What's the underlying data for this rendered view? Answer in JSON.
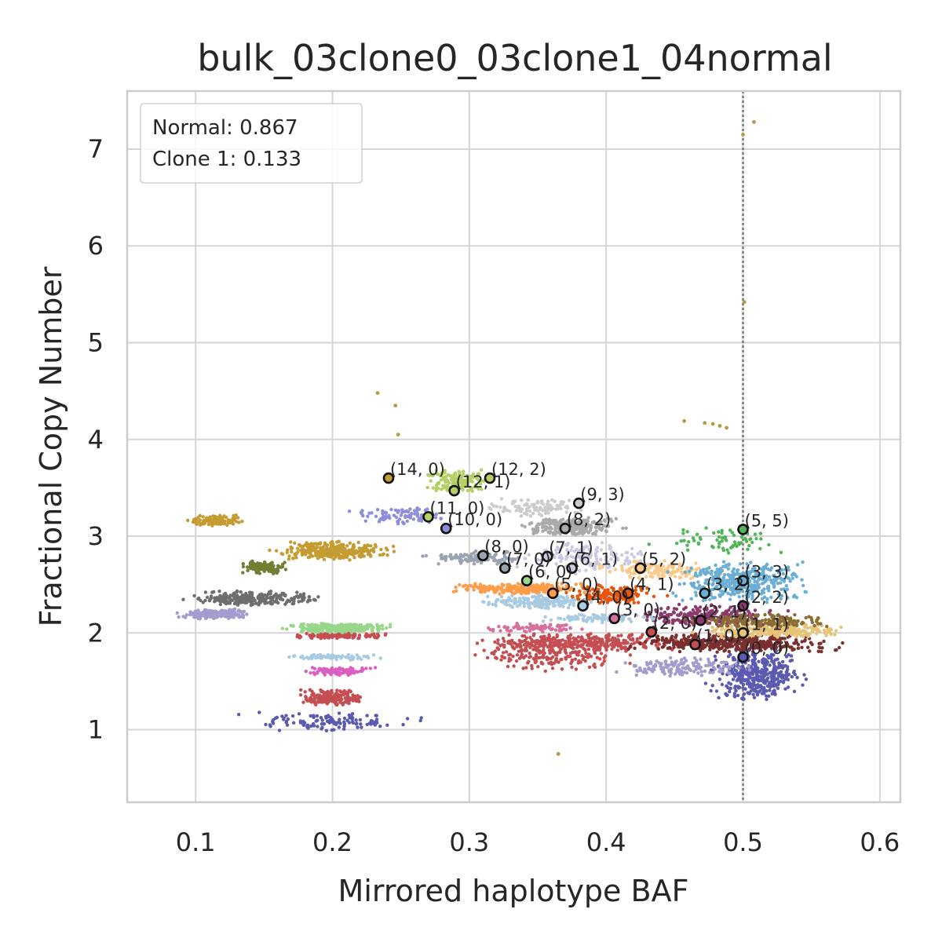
{
  "chart_data": {
    "type": "scatter",
    "title": "bulk_03clone0_03clone1_04normal",
    "xlabel": "Mirrored haplotype BAF",
    "ylabel": "Fractional Copy Number",
    "xlim": [
      0.05,
      0.615
    ],
    "ylim": [
      0.25,
      7.6
    ],
    "x_ticks": [
      "0.1",
      "0.2",
      "0.3",
      "0.4",
      "0.5",
      "0.6"
    ],
    "y_ticks": [
      "1",
      "2",
      "3",
      "4",
      "5",
      "6",
      "7"
    ],
    "grid": true,
    "legend_position": "top-left",
    "legend": [
      "Normal: 0.867",
      "Clone 1: 0.133"
    ],
    "reference_line_x": 0.5,
    "clusters": [
      {
        "color": "#5a5ab0",
        "x": [
          0.47,
          0.55
        ],
        "y": [
          1.3,
          1.85
        ],
        "n": 420
      },
      {
        "color": "#5a5ab0",
        "x": [
          0.12,
          0.28
        ],
        "y": [
          0.98,
          1.18
        ],
        "n": 120
      },
      {
        "color": "#c44e52",
        "x": [
          0.17,
          0.23
        ],
        "y": [
          1.25,
          1.42
        ],
        "n": 200
      },
      {
        "color": "#da5fc0",
        "x": [
          0.17,
          0.24
        ],
        "y": [
          1.56,
          1.65
        ],
        "n": 110
      },
      {
        "color": "#a9cbe2",
        "x": [
          0.15,
          0.25
        ],
        "y": [
          1.72,
          1.78
        ],
        "n": 80
      },
      {
        "color": "#c44e52",
        "x": [
          0.16,
          0.25
        ],
        "y": [
          1.94,
          2.0
        ],
        "n": 110
      },
      {
        "color": "#98d68a",
        "x": [
          0.16,
          0.25
        ],
        "y": [
          2.0,
          2.1
        ],
        "n": 260
      },
      {
        "color": "#a39ccc",
        "x": [
          0.08,
          0.15
        ],
        "y": [
          2.14,
          2.25
        ],
        "n": 170
      },
      {
        "color": "#6e6e6e",
        "x": [
          0.08,
          0.2
        ],
        "y": [
          2.28,
          2.45
        ],
        "n": 250
      },
      {
        "color": "#707f33",
        "x": [
          0.13,
          0.17
        ],
        "y": [
          2.6,
          2.75
        ],
        "n": 130
      },
      {
        "color": "#c49c32",
        "x": [
          0.15,
          0.25
        ],
        "y": [
          2.75,
          2.95
        ],
        "n": 330
      },
      {
        "color": "#c49c32",
        "x": [
          0.09,
          0.14
        ],
        "y": [
          3.1,
          3.22
        ],
        "n": 130
      },
      {
        "color": "#8e8edc",
        "x": [
          0.2,
          0.3
        ],
        "y": [
          3.12,
          3.3
        ],
        "n": 90
      },
      {
        "color": "#b4d065",
        "x": [
          0.26,
          0.32
        ],
        "y": [
          3.45,
          3.7
        ],
        "n": 160
      },
      {
        "color": "#aaaaaa",
        "x": [
          0.33,
          0.42
        ],
        "y": [
          3.0,
          3.2
        ],
        "n": 260
      },
      {
        "color": "#cccccc",
        "x": [
          0.3,
          0.4
        ],
        "y": [
          3.2,
          3.4
        ],
        "n": 100
      },
      {
        "color": "#9aa3b0",
        "x": [
          0.26,
          0.35
        ],
        "y": [
          2.7,
          2.85
        ],
        "n": 120
      },
      {
        "color": "#cbc9e0",
        "x": [
          0.32,
          0.45
        ],
        "y": [
          2.6,
          2.95
        ],
        "n": 150
      },
      {
        "color": "#fd9d4a",
        "x": [
          0.27,
          0.4
        ],
        "y": [
          2.4,
          2.52
        ],
        "n": 240
      },
      {
        "color": "#e6550d",
        "x": [
          0.36,
          0.45
        ],
        "y": [
          2.3,
          2.5
        ],
        "n": 140
      },
      {
        "color": "#a9cbe2",
        "x": [
          0.3,
          0.4
        ],
        "y": [
          2.25,
          2.4
        ],
        "n": 180
      },
      {
        "color": "#fbc98a",
        "x": [
          0.38,
          0.5
        ],
        "y": [
          2.55,
          2.75
        ],
        "n": 140
      },
      {
        "color": "#6aaed6",
        "x": [
          0.44,
          0.56
        ],
        "y": [
          2.3,
          2.75
        ],
        "n": 380
      },
      {
        "color": "#52b55a",
        "x": [
          0.42,
          0.55
        ],
        "y": [
          2.8,
          3.1
        ],
        "n": 70
      },
      {
        "color": "#c44e52",
        "x": [
          0.29,
          0.43
        ],
        "y": [
          1.6,
          1.95
        ],
        "n": 200
      },
      {
        "color": "#c44e52",
        "x": [
          0.3,
          0.47
        ],
        "y": [
          1.8,
          2.0
        ],
        "n": 320
      },
      {
        "color": "#7a2f2f",
        "x": [
          0.4,
          0.58
        ],
        "y": [
          1.8,
          2.0
        ],
        "n": 420
      },
      {
        "color": "#e6c47a",
        "x": [
          0.46,
          0.58
        ],
        "y": [
          1.95,
          2.1
        ],
        "n": 260
      },
      {
        "color": "#8c3a6e",
        "x": [
          0.4,
          0.55
        ],
        "y": [
          2.05,
          2.3
        ],
        "n": 220
      },
      {
        "color": "#d6719e",
        "x": [
          0.3,
          0.4
        ],
        "y": [
          2.0,
          2.1
        ],
        "n": 80
      },
      {
        "color": "#8c6d31",
        "x": [
          0.45,
          0.58
        ],
        "y": [
          2.05,
          2.2
        ],
        "n": 160
      },
      {
        "color": "#a9cbe2",
        "x": [
          0.34,
          0.45
        ],
        "y": [
          2.1,
          2.2
        ],
        "n": 90
      },
      {
        "color": "#a39ccc",
        "x": [
          0.4,
          0.52
        ],
        "y": [
          1.55,
          1.75
        ],
        "n": 150
      }
    ],
    "outliers": {
      "color": "#b39a48",
      "points": [
        [
          0.5,
          7.15
        ],
        [
          0.508,
          7.28
        ],
        [
          0.501,
          5.42
        ],
        [
          0.233,
          4.48
        ],
        [
          0.246,
          4.35
        ],
        [
          0.248,
          4.05
        ],
        [
          0.457,
          4.19
        ],
        [
          0.472,
          4.17
        ],
        [
          0.478,
          4.16
        ],
        [
          0.483,
          4.14
        ],
        [
          0.488,
          4.12
        ],
        [
          0.365,
          0.75
        ]
      ]
    },
    "states": [
      {
        "label": "(14, 0)",
        "x": 0.241,
        "y": 3.6,
        "color": "#c49c32"
      },
      {
        "label": "(12, 2)",
        "x": 0.315,
        "y": 3.6,
        "color": "#b4d065"
      },
      {
        "label": "(12, 1)",
        "x": 0.289,
        "y": 3.47,
        "color": "#b4d065"
      },
      {
        "label": "(9, 3)",
        "x": 0.38,
        "y": 3.34,
        "color": "#cccccc"
      },
      {
        "label": "(11, 0)",
        "x": 0.27,
        "y": 3.2,
        "color": "#b4d065"
      },
      {
        "label": "(10, 0)",
        "x": 0.283,
        "y": 3.08,
        "color": "#8e8edc"
      },
      {
        "label": "(8, 2)",
        "x": 0.37,
        "y": 3.08,
        "color": "#aaaaaa"
      },
      {
        "label": "(5, 5)",
        "x": 0.5,
        "y": 3.07,
        "color": "#52b55a"
      },
      {
        "label": "(8, 0)",
        "x": 0.31,
        "y": 2.8,
        "color": "#9aa3b0"
      },
      {
        "label": "(7, 1)",
        "x": 0.357,
        "y": 2.79,
        "color": "#cbc9e0"
      },
      {
        "label": "(7, 0)",
        "x": 0.326,
        "y": 2.67,
        "color": "#9aa3b0"
      },
      {
        "label": "(6, 1)",
        "x": 0.375,
        "y": 2.67,
        "color": "#cbc9e0"
      },
      {
        "label": "(5, 2)",
        "x": 0.425,
        "y": 2.67,
        "color": "#fbc98a"
      },
      {
        "label": "(6, 0)",
        "x": 0.342,
        "y": 2.54,
        "color": "#98d68a"
      },
      {
        "label": "(3, 3)",
        "x": 0.5,
        "y": 2.54,
        "color": "#6aaed6"
      },
      {
        "label": "(5, 0)",
        "x": 0.361,
        "y": 2.41,
        "color": "#fd9d4a"
      },
      {
        "label": "(4, 1)",
        "x": 0.416,
        "y": 2.41,
        "color": "#e6550d"
      },
      {
        "label": "(3, 2)",
        "x": 0.472,
        "y": 2.41,
        "color": "#6aaed6"
      },
      {
        "label": "(4, 0)",
        "x": 0.383,
        "y": 2.28,
        "color": "#a9cbe2"
      },
      {
        "label": "(2, 2)",
        "x": 0.5,
        "y": 2.28,
        "color": "#8c3a6e"
      },
      {
        "label": "(3, 0)",
        "x": 0.406,
        "y": 2.15,
        "color": "#d6719e"
      },
      {
        "label": "(2, 1)",
        "x": 0.469,
        "y": 2.13,
        "color": "#8c3a6e"
      },
      {
        "label": "(2, 0)",
        "x": 0.433,
        "y": 2.01,
        "color": "#c44e52"
      },
      {
        "label": "(1, 1)",
        "x": 0.5,
        "y": 2.0,
        "color": "#e6c47a"
      },
      {
        "label": "(1, 0)",
        "x": 0.465,
        "y": 1.88,
        "color": "#c44e52"
      },
      {
        "label": "(0, 0)",
        "x": 0.5,
        "y": 1.75,
        "color": "#5a5ab0"
      }
    ]
  }
}
